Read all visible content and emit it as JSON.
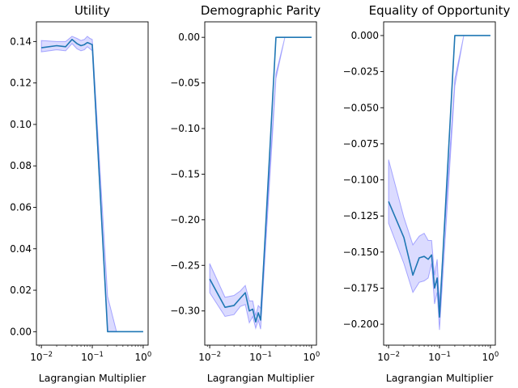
{
  "chart_data": [
    {
      "type": "line",
      "title": "Utility",
      "xlabel": "Lagrangian Multiplier",
      "ylabel": "",
      "xscale": "log",
      "xlim": [
        0.008,
        1.25
      ],
      "ylim": [
        -0.0065,
        0.1495
      ],
      "yticks": [
        0.0,
        0.02,
        0.04,
        0.06,
        0.08,
        0.1,
        0.12,
        0.14
      ],
      "ytick_labels": [
        "0.00",
        "0.02",
        "0.04",
        "0.06",
        "0.08",
        "0.10",
        "0.12",
        "0.14"
      ],
      "xtick_labels": [
        "10^-2",
        "10^-1",
        "10^0"
      ],
      "color": "#1f77b4",
      "band_color": "#0000ff",
      "series": [
        {
          "x": [
            0.01,
            0.02,
            0.03,
            0.04,
            0.05,
            0.06,
            0.07,
            0.08,
            0.09,
            0.1,
            0.2,
            0.3,
            0.4,
            0.5,
            0.6,
            0.7,
            0.8,
            0.9,
            1.0
          ],
          "y": [
            0.137,
            0.138,
            0.1375,
            0.141,
            0.139,
            0.138,
            0.1385,
            0.1395,
            0.139,
            0.1385,
            0.0,
            0.0,
            0.0,
            0.0,
            0.0,
            0.0,
            0.0,
            0.0,
            0.0
          ],
          "lower": [
            0.135,
            0.136,
            0.1355,
            0.139,
            0.1365,
            0.1355,
            0.136,
            0.1375,
            0.1365,
            0.1355,
            0.0,
            0.0,
            0.0,
            0.0,
            0.0,
            0.0,
            0.0,
            0.0,
            0.0
          ],
          "upper": [
            0.1405,
            0.14,
            0.14,
            0.1425,
            0.1415,
            0.1405,
            0.141,
            0.1425,
            0.1415,
            0.141,
            0.017,
            0.0,
            0.0,
            0.0,
            0.0,
            0.0,
            0.0,
            0.0,
            0.0
          ]
        }
      ]
    },
    {
      "type": "line",
      "title": "Demographic Parity",
      "xlabel": "Lagrangian Multiplier",
      "ylabel": "",
      "xscale": "log",
      "xlim": [
        0.008,
        1.25
      ],
      "ylim": [
        -0.3375,
        0.017
      ],
      "yticks": [
        -0.3,
        -0.25,
        -0.2,
        -0.15,
        -0.1,
        -0.05,
        0.0
      ],
      "ytick_labels": [
        "−0.30",
        "−0.25",
        "−0.20",
        "−0.15",
        "−0.10",
        "−0.05",
        "0.00"
      ],
      "xtick_labels": [
        "10^-2",
        "10^-1",
        "10^0"
      ],
      "color": "#1f77b4",
      "band_color": "#0000ff",
      "series": [
        {
          "x": [
            0.01,
            0.02,
            0.03,
            0.04,
            0.05,
            0.06,
            0.07,
            0.08,
            0.09,
            0.1,
            0.2,
            0.3,
            0.4,
            0.5,
            0.6,
            0.7,
            0.8,
            0.9,
            1.0
          ],
          "y": [
            -0.265,
            -0.296,
            -0.294,
            -0.286,
            -0.28,
            -0.3,
            -0.298,
            -0.312,
            -0.302,
            -0.31,
            0.0,
            0.0,
            0.0,
            0.0,
            0.0,
            0.0,
            0.0,
            0.0,
            0.0
          ],
          "lower": [
            -0.28,
            -0.306,
            -0.304,
            -0.295,
            -0.293,
            -0.313,
            -0.306,
            -0.319,
            -0.31,
            -0.32,
            -0.045,
            0.0,
            0.0,
            0.0,
            0.0,
            0.0,
            0.0,
            0.0,
            0.0
          ],
          "upper": [
            -0.248,
            -0.285,
            -0.283,
            -0.278,
            -0.272,
            -0.289,
            -0.289,
            -0.305,
            -0.294,
            -0.297,
            -0.04,
            0.0,
            0.0,
            0.0,
            0.0,
            0.0,
            0.0,
            0.0,
            0.0
          ]
        }
      ]
    },
    {
      "type": "line",
      "title": "Equality of Opportunity",
      "xlabel": "Lagrangian Multiplier",
      "ylabel": "",
      "xscale": "log",
      "xlim": [
        0.008,
        1.25
      ],
      "ylim": [
        -0.2145,
        0.0095
      ],
      "yticks": [
        -0.2,
        -0.175,
        -0.15,
        -0.125,
        -0.1,
        -0.075,
        -0.05,
        -0.025,
        0.0
      ],
      "ytick_labels": [
        "−0.200",
        "−0.175",
        "−0.150",
        "−0.125",
        "−0.100",
        "−0.075",
        "−0.050",
        "−0.025",
        "0.000"
      ],
      "xtick_labels": [
        "10^-2",
        "10^-1",
        "10^0"
      ],
      "color": "#1f77b4",
      "band_color": "#0000ff",
      "series": [
        {
          "x": [
            0.01,
            0.02,
            0.03,
            0.04,
            0.05,
            0.06,
            0.07,
            0.08,
            0.09,
            0.1,
            0.2,
            0.3,
            0.4,
            0.5,
            0.6,
            0.7,
            0.8,
            0.9,
            1.0
          ],
          "y": [
            -0.115,
            -0.14,
            -0.166,
            -0.154,
            -0.153,
            -0.155,
            -0.152,
            -0.175,
            -0.168,
            -0.195,
            0.0,
            0.0,
            0.0,
            0.0,
            0.0,
            0.0,
            0.0,
            0.0,
            0.0
          ],
          "lower": [
            -0.13,
            -0.158,
            -0.178,
            -0.171,
            -0.17,
            -0.168,
            -0.158,
            -0.186,
            -0.178,
            -0.204,
            -0.035,
            0.0,
            0.0,
            0.0,
            0.0,
            0.0,
            0.0,
            0.0,
            0.0
          ],
          "upper": [
            -0.086,
            -0.126,
            -0.145,
            -0.139,
            -0.137,
            -0.142,
            -0.142,
            -0.166,
            -0.155,
            -0.186,
            -0.03,
            0.0,
            0.0,
            0.0,
            0.0,
            0.0,
            0.0,
            0.0,
            0.0
          ]
        }
      ]
    }
  ]
}
